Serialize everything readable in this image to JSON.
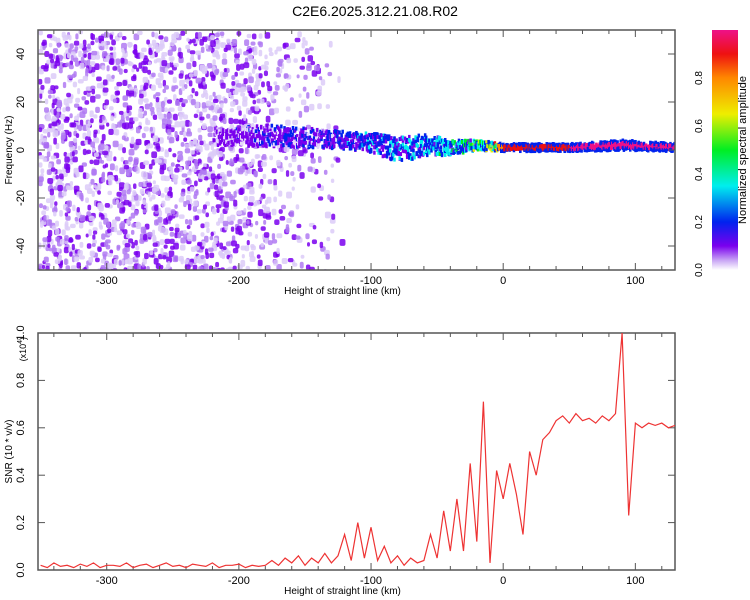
{
  "title": "C2E6.2025.312.21.08.R02",
  "chart_data": [
    {
      "type": "heatmap",
      "xlabel": "Height of straight line (km)",
      "ylabel": "Frequency (Hz)",
      "xlim": [
        -352,
        130
      ],
      "ylim": [
        -50,
        50
      ],
      "xticks": [
        -300,
        -200,
        -100,
        0,
        100
      ],
      "xtick_labels": [
        "-300",
        "-200",
        "-100",
        "0",
        "100"
      ],
      "yticks": [
        -40,
        -20,
        0,
        20,
        40
      ],
      "ytick_labels": [
        "-40",
        "-20",
        "0",
        "20",
        "40"
      ],
      "noise_region_km": [
        -352,
        -140
      ],
      "signal_band": {
        "height_km": [
          -220,
          -180,
          -150,
          -120,
          -100,
          -80,
          -60,
          -40,
          -20,
          0,
          50,
          90,
          130
        ],
        "center_hz": [
          5,
          6,
          5,
          4,
          3,
          0,
          2,
          1,
          2,
          1,
          1,
          2,
          1
        ],
        "width_hz": [
          6,
          9,
          8,
          7,
          8,
          10,
          9,
          6,
          4,
          3,
          3,
          4,
          3
        ],
        "amplitude": [
          0.15,
          0.2,
          0.22,
          0.3,
          0.35,
          0.35,
          0.4,
          0.45,
          0.6,
          0.9,
          1.0,
          1.0,
          1.0
        ]
      },
      "colorbar": {
        "label": "Normalized spectral amplitude",
        "range": [
          0,
          1
        ],
        "ticks": [
          "0.0",
          "0.2",
          "0.4",
          "0.6",
          "0.8"
        ]
      }
    },
    {
      "type": "line",
      "xlabel": "Height of straight line (km)",
      "ylabel": "SNR (10 * v/v)",
      "y_multiplier": "(x10",
      "y_multiplier_exp": "4",
      "y_multiplier_close": ")",
      "xlim": [
        -352,
        130
      ],
      "ylim": [
        0,
        1.0
      ],
      "xticks": [
        -300,
        -200,
        -100,
        0,
        100
      ],
      "xtick_labels": [
        "-300",
        "-200",
        "-100",
        "0",
        "100"
      ],
      "yticks": [
        0,
        0.2,
        0.4,
        0.6,
        0.8,
        1.0
      ],
      "ytick_labels": [
        "0.0",
        "0.2",
        "0.4",
        "0.6",
        "0.8",
        "1.0"
      ],
      "color": "#ee3333",
      "x_start": -350,
      "x_step": 5,
      "values": [
        0.02,
        0.01,
        0.03,
        0.015,
        0.02,
        0.01,
        0.025,
        0.015,
        0.03,
        0.01,
        0.02,
        0.02,
        0.015,
        0.03,
        0.01,
        0.02,
        0.025,
        0.01,
        0.02,
        0.03,
        0.015,
        0.02,
        0.01,
        0.025,
        0.02,
        0.015,
        0.03,
        0.01,
        0.02,
        0.02,
        0.025,
        0.01,
        0.02,
        0.015,
        0.02,
        0.04,
        0.02,
        0.05,
        0.03,
        0.06,
        0.02,
        0.05,
        0.03,
        0.07,
        0.03,
        0.06,
        0.15,
        0.04,
        0.2,
        0.05,
        0.18,
        0.04,
        0.1,
        0.03,
        0.06,
        0.02,
        0.05,
        0.03,
        0.04,
        0.15,
        0.05,
        0.25,
        0.08,
        0.3,
        0.08,
        0.45,
        0.12,
        0.71,
        0.03,
        0.42,
        0.3,
        0.45,
        0.32,
        0.15,
        0.5,
        0.4,
        0.55,
        0.58,
        0.63,
        0.65,
        0.62,
        0.66,
        0.63,
        0.64,
        0.62,
        0.65,
        0.63,
        0.66,
        1.0,
        0.23,
        0.62,
        0.6,
        0.62,
        0.61,
        0.62,
        0.6,
        0.61
      ]
    }
  ]
}
